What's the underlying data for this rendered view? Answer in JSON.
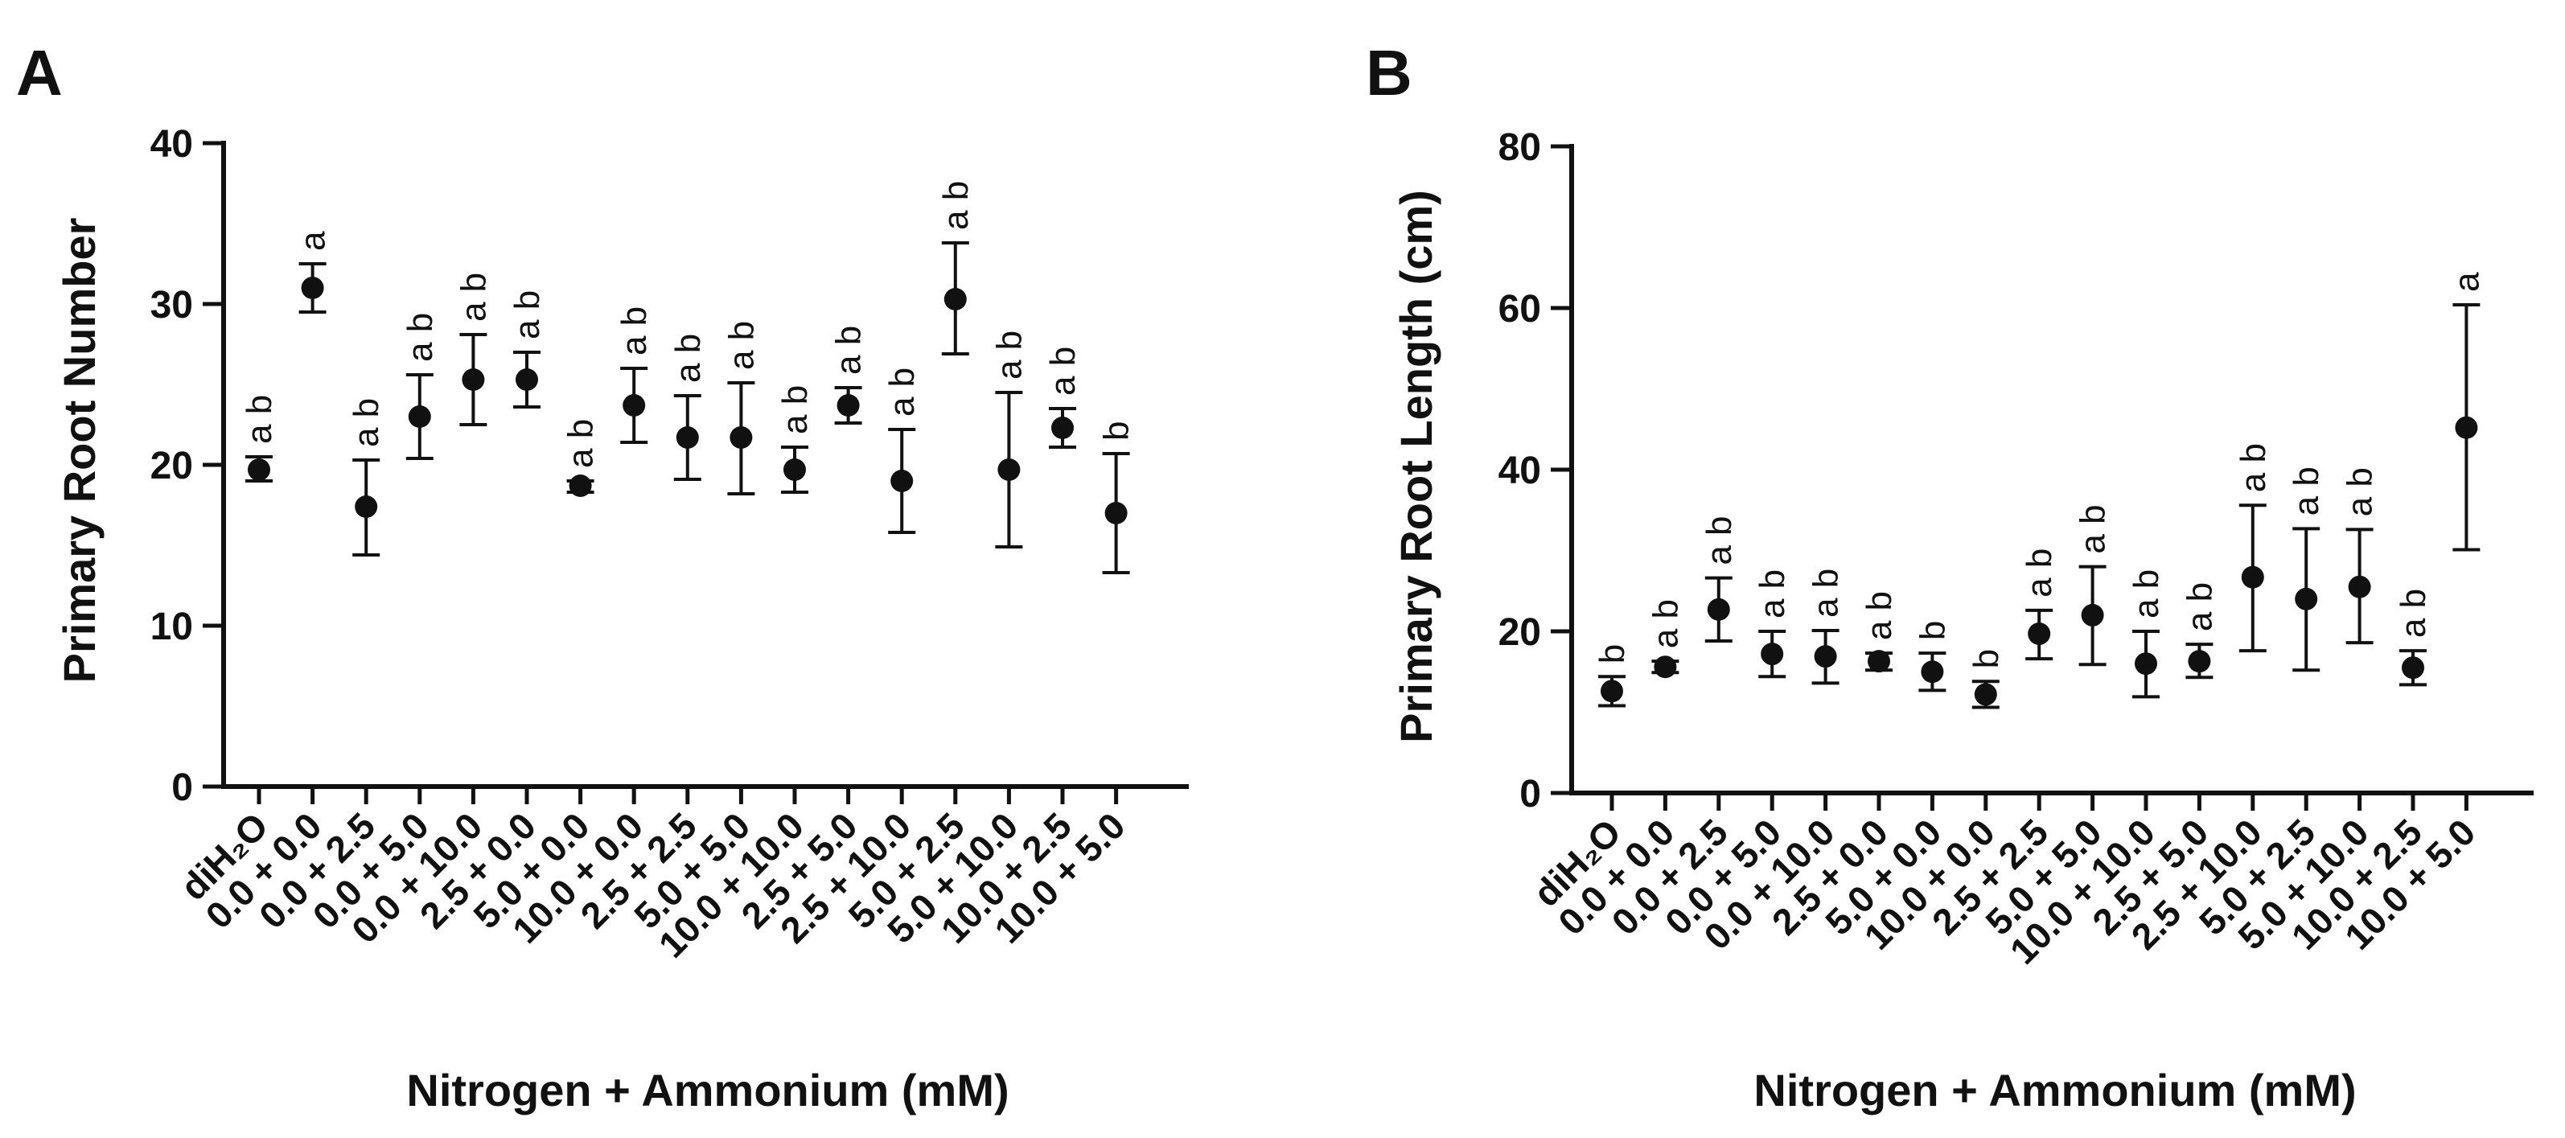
{
  "chart_data": [
    {
      "type": "scatter",
      "panel": "A",
      "title": "",
      "xlabel": "Nitrogen + Ammonium (mM)",
      "ylabel": "Primary Root Number",
      "ylim": [
        0,
        40
      ],
      "yticks": [
        "0",
        "10",
        "20",
        "30",
        "40"
      ],
      "categories": [
        "diH₂O",
        "0.0 + 0.0",
        "0.0 + 2.5",
        "0.0 + 5.0",
        "0.0 + 10.0",
        "2.5 + 0.0",
        "5.0 + 0.0",
        "10.0 + 0.0",
        "2.5 + 2.5",
        "5.0 + 5.0",
        "10.0 + 10.0",
        "2.5 + 5.0",
        "2.5 + 10.0",
        "5.0 + 2.5",
        "5.0 + 10.0",
        "10.0 + 2.5",
        "10.0 + 5.0"
      ],
      "values": [
        19.7,
        31.0,
        17.4,
        23.0,
        25.3,
        25.3,
        18.7,
        23.7,
        21.7,
        21.7,
        19.7,
        23.7,
        19.0,
        30.3,
        19.7,
        22.3,
        17.0
      ],
      "err_low": [
        19.0,
        29.5,
        14.4,
        20.4,
        22.5,
        23.6,
        18.3,
        21.4,
        19.1,
        18.2,
        18.3,
        22.6,
        15.8,
        26.9,
        14.9,
        21.1,
        13.3
      ],
      "err_high": [
        20.5,
        32.5,
        20.3,
        25.6,
        28.1,
        27.0,
        19.0,
        26.0,
        24.3,
        25.1,
        21.1,
        24.8,
        22.2,
        33.8,
        24.5,
        23.5,
        20.7
      ],
      "sig_letters": [
        "a b",
        "a",
        "a b",
        "a b",
        "a b",
        "a b",
        "a b",
        "a b",
        "a b",
        "a b",
        "a b",
        "a b",
        "a b",
        "a b",
        "a b",
        "a b",
        "b"
      ]
    },
    {
      "type": "scatter",
      "panel": "B",
      "title": "",
      "xlabel": "Nitrogen + Ammonium (mM)",
      "ylabel": "Primary Root Length (cm)",
      "ylim": [
        0,
        80
      ],
      "yticks": [
        "0",
        "20",
        "40",
        "60",
        "80"
      ],
      "categories": [
        "diH₂O",
        "0.0 + 0.0",
        "0.0 + 2.5",
        "0.0 + 5.0",
        "0.0 + 10.0",
        "2.5 + 0.0",
        "5.0 + 0.0",
        "10.0 + 0.0",
        "2.5 + 2.5",
        "5.0 + 5.0",
        "10.0 + 10.0",
        "2.5 + 5.0",
        "2.5 + 10.0",
        "5.0 + 2.5",
        "5.0 + 10.0",
        "10.0 + 2.5",
        "10.0 + 5.0"
      ],
      "values": [
        12.6,
        15.6,
        22.7,
        17.2,
        16.9,
        16.3,
        15.0,
        12.2,
        19.7,
        22.0,
        16.0,
        16.3,
        26.7,
        24.0,
        25.5,
        15.5,
        45.2
      ],
      "err_low": [
        10.8,
        14.9,
        18.8,
        14.4,
        13.6,
        15.2,
        12.7,
        10.6,
        16.6,
        15.9,
        11.9,
        14.3,
        17.6,
        15.2,
        18.6,
        13.4,
        30.1
      ],
      "err_high": [
        14.4,
        16.3,
        26.6,
        20.0,
        20.1,
        17.3,
        17.3,
        13.8,
        22.6,
        28.0,
        20.0,
        18.4,
        35.6,
        32.7,
        32.6,
        17.6,
        60.4
      ],
      "sig_letters": [
        "b",
        "a b",
        "a b",
        "a b",
        "a b",
        "a b",
        "b",
        "b",
        "a b",
        "a b",
        "a b",
        "a b",
        "a b",
        "a b",
        "a b",
        "a b",
        "a"
      ]
    }
  ]
}
